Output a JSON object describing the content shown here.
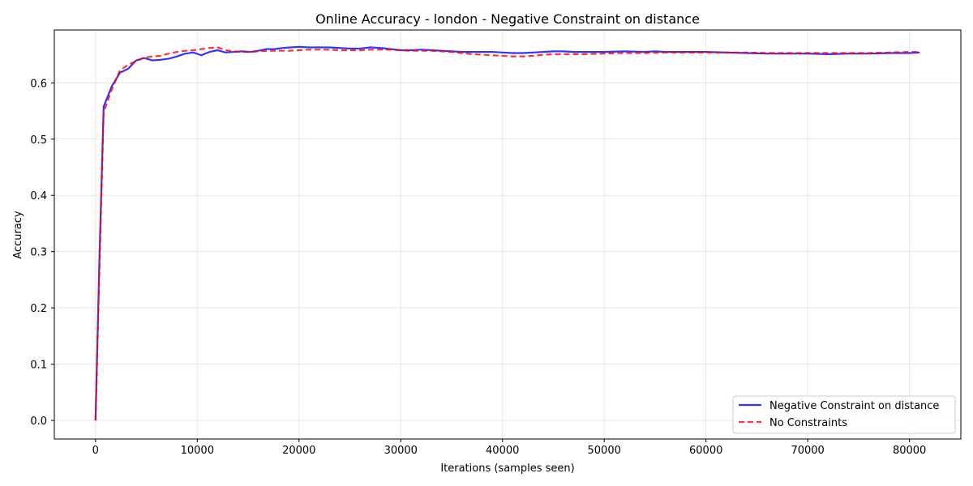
{
  "chart_data": {
    "type": "line",
    "title": "Online Accuracy - london - Negative Constraint on distance",
    "xlabel": "Iterations (samples seen)",
    "ylabel": "Accuracy",
    "xlim": [
      -4050,
      85050
    ],
    "ylim": [
      -0.033,
      0.694
    ],
    "xticks": [
      0,
      10000,
      20000,
      30000,
      40000,
      50000,
      60000,
      70000,
      80000
    ],
    "yticks": [
      0.0,
      0.1,
      0.2,
      0.3,
      0.4,
      0.5,
      0.6
    ],
    "xtick_labels": [
      "0",
      "10000",
      "20000",
      "30000",
      "40000",
      "50000",
      "60000",
      "70000",
      "80000"
    ],
    "ytick_labels": [
      "0.0",
      "0.1",
      "0.2",
      "0.3",
      "0.4",
      "0.5",
      "0.6"
    ],
    "grid": true,
    "legend_position": "lower-right",
    "series": [
      {
        "name": "Negative Constraint on distance",
        "color": "#0000ff",
        "style": "solid",
        "x": [
          0,
          400,
          800,
          1600,
          2400,
          3200,
          4000,
          4800,
          5600,
          6400,
          7200,
          8000,
          8800,
          9600,
          10400,
          11200,
          12000,
          12800,
          13600,
          14400,
          15200,
          16000,
          16800,
          17600,
          18400,
          19200,
          20000,
          21000,
          22000,
          23000,
          24000,
          25000,
          26000,
          27000,
          28000,
          29000,
          30000,
          31000,
          32000,
          33000,
          34000,
          35000,
          36000,
          37000,
          38000,
          39000,
          40000,
          41000,
          42000,
          43000,
          44000,
          45000,
          46000,
          47000,
          48000,
          49000,
          50000,
          52000,
          54000,
          55000,
          56000,
          58000,
          60000,
          62000,
          64000,
          66000,
          68000,
          70000,
          72000,
          74000,
          76000,
          78000,
          80000,
          81000
        ],
        "y": [
          0.0,
          0.3,
          0.558,
          0.594,
          0.618,
          0.625,
          0.64,
          0.644,
          0.64,
          0.641,
          0.643,
          0.647,
          0.652,
          0.654,
          0.649,
          0.655,
          0.658,
          0.654,
          0.655,
          0.656,
          0.655,
          0.657,
          0.66,
          0.66,
          0.662,
          0.663,
          0.664,
          0.663,
          0.663,
          0.663,
          0.662,
          0.661,
          0.661,
          0.663,
          0.662,
          0.66,
          0.658,
          0.658,
          0.659,
          0.658,
          0.657,
          0.656,
          0.655,
          0.655,
          0.655,
          0.655,
          0.654,
          0.653,
          0.653,
          0.654,
          0.655,
          0.656,
          0.656,
          0.655,
          0.655,
          0.655,
          0.655,
          0.656,
          0.655,
          0.656,
          0.655,
          0.655,
          0.655,
          0.654,
          0.653,
          0.652,
          0.652,
          0.652,
          0.651,
          0.652,
          0.652,
          0.653,
          0.653,
          0.654
        ]
      },
      {
        "name": "No Constraints",
        "color": "#ff0000",
        "style": "dashed",
        "x": [
          0,
          400,
          800,
          1600,
          2400,
          3200,
          4000,
          4800,
          5600,
          6400,
          7200,
          8000,
          8800,
          9600,
          10400,
          11200,
          12000,
          12800,
          13600,
          14400,
          15200,
          16000,
          17000,
          18000,
          19000,
          20000,
          21000,
          22000,
          23000,
          24000,
          25000,
          26000,
          27000,
          28000,
          29000,
          30000,
          31000,
          32000,
          33000,
          34000,
          35000,
          36000,
          37000,
          38000,
          39000,
          40000,
          41000,
          42000,
          43000,
          44000,
          45000,
          46000,
          48000,
          50000,
          52000,
          54000,
          56000,
          58000,
          60000,
          62000,
          64000,
          66000,
          68000,
          70000,
          72000,
          74000,
          76000,
          78000,
          80000,
          81000
        ],
        "y": [
          0.0,
          0.28,
          0.548,
          0.588,
          0.622,
          0.632,
          0.639,
          0.645,
          0.647,
          0.648,
          0.652,
          0.655,
          0.657,
          0.658,
          0.66,
          0.662,
          0.663,
          0.658,
          0.656,
          0.655,
          0.655,
          0.656,
          0.657,
          0.657,
          0.657,
          0.658,
          0.659,
          0.659,
          0.659,
          0.658,
          0.658,
          0.658,
          0.659,
          0.659,
          0.659,
          0.658,
          0.657,
          0.657,
          0.657,
          0.656,
          0.655,
          0.653,
          0.651,
          0.65,
          0.649,
          0.648,
          0.647,
          0.647,
          0.648,
          0.65,
          0.651,
          0.651,
          0.651,
          0.652,
          0.653,
          0.653,
          0.654,
          0.654,
          0.654,
          0.654,
          0.654,
          0.653,
          0.653,
          0.653,
          0.653,
          0.653,
          0.653,
          0.654,
          0.655,
          0.655
        ]
      }
    ]
  }
}
